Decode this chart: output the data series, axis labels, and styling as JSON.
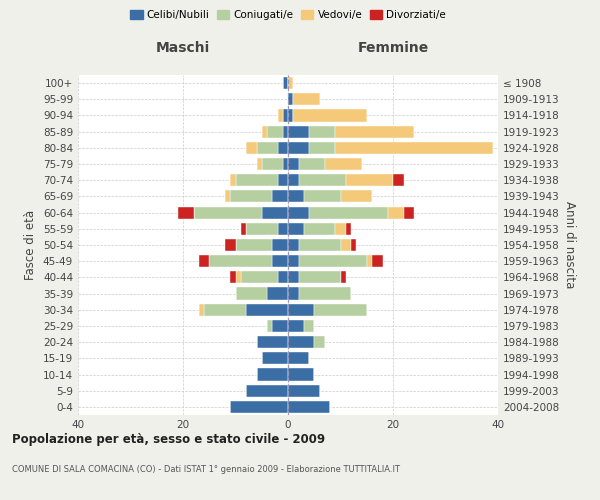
{
  "age_groups": [
    "0-4",
    "5-9",
    "10-14",
    "15-19",
    "20-24",
    "25-29",
    "30-34",
    "35-39",
    "40-44",
    "45-49",
    "50-54",
    "55-59",
    "60-64",
    "65-69",
    "70-74",
    "75-79",
    "80-84",
    "85-89",
    "90-94",
    "95-99",
    "100+"
  ],
  "birth_years": [
    "2004-2008",
    "1999-2003",
    "1994-1998",
    "1989-1993",
    "1984-1988",
    "1979-1983",
    "1974-1978",
    "1969-1973",
    "1964-1968",
    "1959-1963",
    "1954-1958",
    "1949-1953",
    "1944-1948",
    "1939-1943",
    "1934-1938",
    "1929-1933",
    "1924-1928",
    "1919-1923",
    "1914-1918",
    "1909-1913",
    "≤ 1908"
  ],
  "colors": {
    "celibi": "#3a6ea5",
    "coniugati": "#b5cfa0",
    "vedovi": "#f5c97a",
    "divorziati": "#cc2222"
  },
  "maschi": {
    "celibi": [
      11,
      8,
      6,
      5,
      6,
      3,
      8,
      4,
      2,
      3,
      3,
      2,
      5,
      3,
      2,
      1,
      2,
      1,
      1,
      0,
      1
    ],
    "coniugati": [
      0,
      0,
      0,
      0,
      0,
      1,
      8,
      6,
      7,
      12,
      7,
      6,
      13,
      8,
      8,
      4,
      4,
      3,
      0,
      0,
      0
    ],
    "vedovi": [
      0,
      0,
      0,
      0,
      0,
      0,
      1,
      0,
      1,
      0,
      0,
      0,
      0,
      1,
      1,
      1,
      2,
      1,
      1,
      0,
      0
    ],
    "divorziati": [
      0,
      0,
      0,
      0,
      0,
      0,
      0,
      0,
      1,
      2,
      2,
      1,
      3,
      0,
      0,
      0,
      0,
      0,
      0,
      0,
      0
    ]
  },
  "femmine": {
    "celibi": [
      8,
      6,
      5,
      4,
      5,
      3,
      5,
      2,
      2,
      2,
      2,
      3,
      4,
      3,
      2,
      2,
      4,
      4,
      1,
      1,
      0
    ],
    "coniugati": [
      0,
      0,
      0,
      0,
      2,
      2,
      10,
      10,
      8,
      13,
      8,
      6,
      15,
      7,
      9,
      5,
      5,
      5,
      0,
      0,
      0
    ],
    "vedovi": [
      0,
      0,
      0,
      0,
      0,
      0,
      0,
      0,
      0,
      1,
      2,
      2,
      3,
      6,
      9,
      7,
      30,
      15,
      14,
      5,
      1
    ],
    "divorziati": [
      0,
      0,
      0,
      0,
      0,
      0,
      0,
      0,
      1,
      2,
      1,
      1,
      2,
      0,
      2,
      0,
      0,
      0,
      0,
      0,
      0
    ]
  },
  "xlim": [
    -40,
    40
  ],
  "xticks": [
    -40,
    -20,
    0,
    20,
    40
  ],
  "xticklabels": [
    "40",
    "20",
    "0",
    "20",
    "40"
  ],
  "title": "Popolazione per età, sesso e stato civile - 2009",
  "subtitle": "COMUNE DI SALA COMACINA (CO) - Dati ISTAT 1° gennaio 2009 - Elaborazione TUTTITALIA.IT",
  "ylabel_left": "Fasce di età",
  "ylabel_right": "Anni di nascita",
  "header_maschi": "Maschi",
  "header_femmine": "Femmine",
  "legend_labels": [
    "Celibi/Nubili",
    "Coniugati/e",
    "Vedovi/e",
    "Divorziati/e"
  ],
  "bg_color": "#f0f0eb",
  "bar_bg": "#ffffff",
  "bar_height": 0.75
}
